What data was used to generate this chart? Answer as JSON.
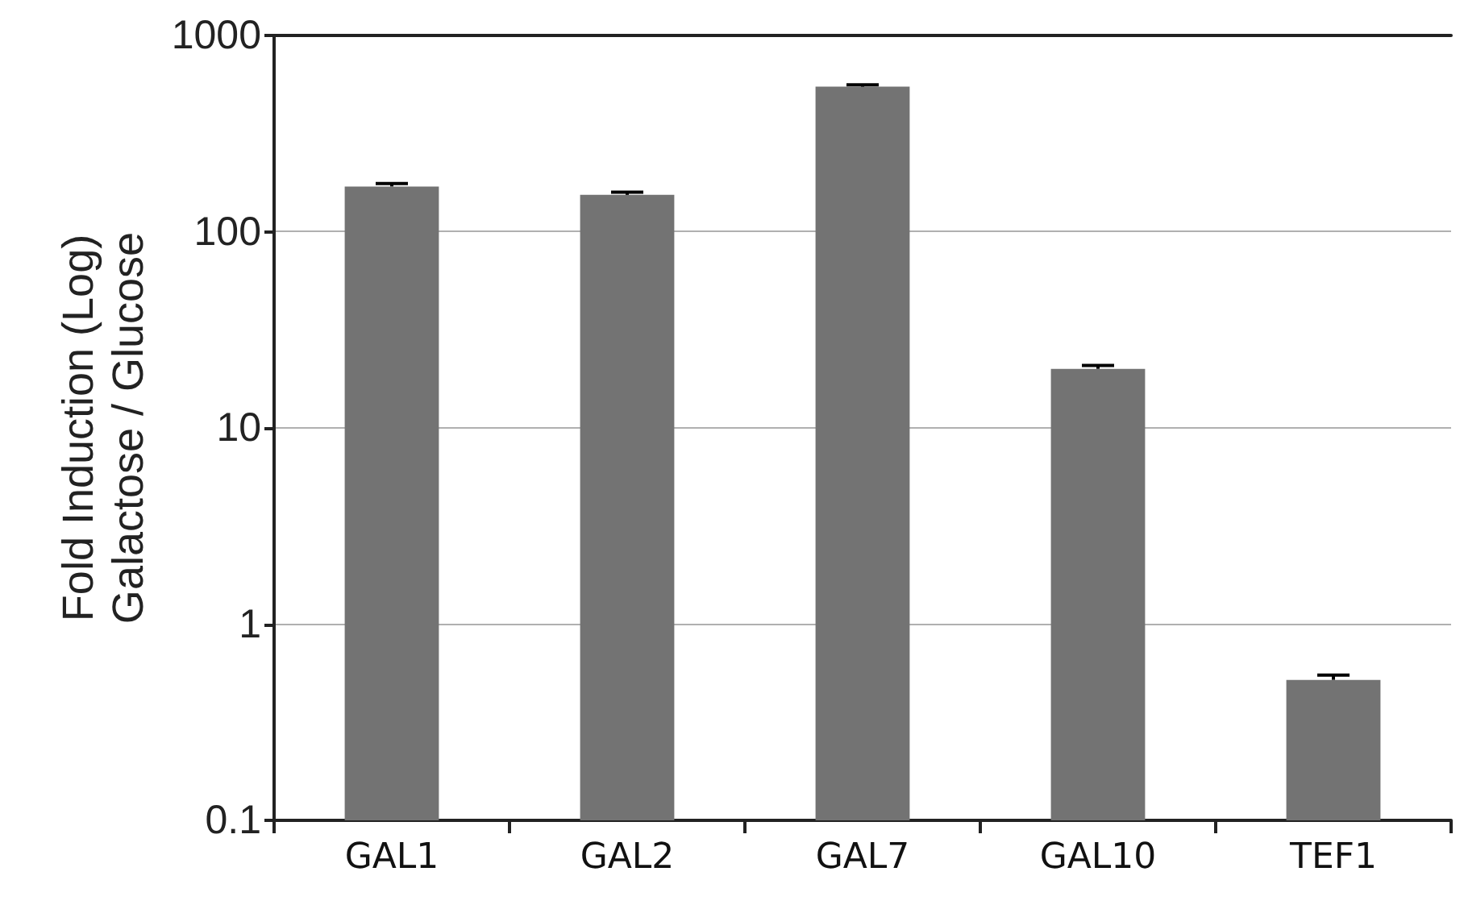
{
  "chart_data": {
    "type": "bar",
    "ylabel": "Fold Induction (Log)\nGalactose / Glucose",
    "categories": [
      "GAL1",
      "GAL2",
      "GAL7",
      "GAL10",
      "TEF1"
    ],
    "values": [
      170,
      154,
      548,
      20,
      0.52
    ],
    "errors": [
      [
        170,
        176
      ],
      [
        154,
        159
      ],
      [
        548,
        560
      ],
      [
        20,
        20.8
      ],
      [
        0.52,
        0.55
      ]
    ],
    "color": "#737373",
    "log": true,
    "ylim": [
      0.1,
      1000
    ],
    "yticks": [
      0.1,
      1,
      10,
      100,
      1000
    ],
    "grid": "y"
  }
}
